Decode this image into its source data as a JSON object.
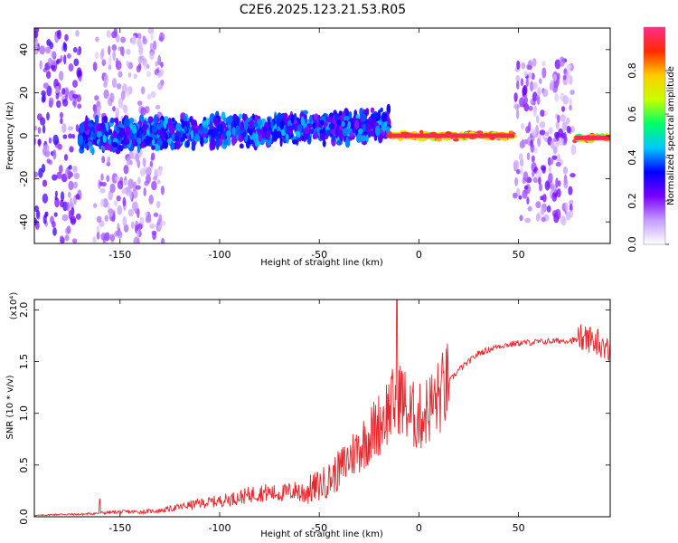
{
  "title": "C2E6.2025.123.21.53.R05",
  "chart_data": [
    {
      "type": "heatmap",
      "xlabel": "Height of straight line (km)",
      "ylabel": "Frequency (Hz)",
      "xlim": [
        -193,
        96
      ],
      "ylim": [
        -50,
        50
      ],
      "xticks": [
        -150,
        -100,
        -50,
        0,
        50
      ],
      "yticks": [
        -40,
        -20,
        0,
        20,
        40
      ],
      "colorbar": {
        "label": "Normalized spectral amplitude",
        "ticks": [
          0.0,
          0.2,
          0.4,
          0.6,
          0.8
        ],
        "range": [
          0,
          1
        ],
        "stops": [
          "#ffffff",
          "#c59bff",
          "#7a00ff",
          "#0000ff",
          "#00c8ff",
          "#00ff66",
          "#c8ff00",
          "#ffcc00",
          "#ff2a00",
          "#ff2b8a"
        ]
      },
      "regions": [
        {
          "x": [
            -193,
            -170
          ],
          "f": [
            -50,
            50
          ],
          "amp": [
            0.1,
            0.3
          ],
          "note": "broadband scatter"
        },
        {
          "x": [
            -163,
            -128
          ],
          "f": [
            -50,
            50
          ],
          "amp": [
            0.05,
            0.2
          ],
          "note": "faint broadband scatter"
        },
        {
          "x": [
            -170,
            -15
          ],
          "f": [
            -8,
            8
          ],
          "amp": [
            0.2,
            0.45
          ],
          "note": "band near 0 Hz"
        },
        {
          "x": [
            -15,
            48
          ],
          "f": [
            -2,
            2
          ],
          "amp": [
            0.6,
            0.95
          ],
          "note": "narrow peak near 0 Hz"
        },
        {
          "x": [
            48,
            78
          ],
          "f": [
            -40,
            35
          ],
          "amp": [
            0.05,
            0.25
          ],
          "note": "broadband scatter"
        },
        {
          "x": [
            78,
            96
          ],
          "f": [
            -3,
            1
          ],
          "amp": [
            0.5,
            0.95
          ],
          "note": "narrow peak near 0 Hz"
        }
      ]
    },
    {
      "type": "line",
      "xlabel": "Height of straight line (km)",
      "ylabel": "SNR (10 * v/v)",
      "yscale_note": "(x10⁴)",
      "xlim": [
        -193,
        96
      ],
      "ylim": [
        0,
        2.1
      ],
      "xticks": [
        -150,
        -100,
        -50,
        0,
        50
      ],
      "yticks": [
        0.0,
        0.5,
        1.0,
        1.5,
        2.0
      ],
      "series_color": "#e8262b",
      "x": [
        -193,
        -180,
        -170,
        -160,
        -150,
        -140,
        -130,
        -120,
        -110,
        -100,
        -90,
        -80,
        -70,
        -60,
        -50,
        -45,
        -40,
        -35,
        -30,
        -25,
        -20,
        -15,
        -12,
        -10,
        -5,
        0,
        5,
        10,
        15,
        20,
        25,
        30,
        40,
        50,
        60,
        70,
        80,
        85,
        90,
        96
      ],
      "y": [
        0.01,
        0.02,
        0.02,
        0.03,
        0.04,
        0.04,
        0.05,
        0.08,
        0.11,
        0.13,
        0.16,
        0.2,
        0.19,
        0.22,
        0.3,
        0.36,
        0.45,
        0.57,
        0.67,
        0.78,
        0.9,
        1.05,
        1.1,
        1.2,
        1.0,
        0.95,
        1.05,
        1.15,
        1.3,
        1.42,
        1.5,
        1.58,
        1.65,
        1.68,
        1.69,
        1.7,
        1.71,
        1.72,
        1.7,
        1.6
      ],
      "spikes": [
        {
          "x": -160,
          "y": 0.17
        },
        {
          "x": -11,
          "y": 2.1
        }
      ]
    }
  ]
}
